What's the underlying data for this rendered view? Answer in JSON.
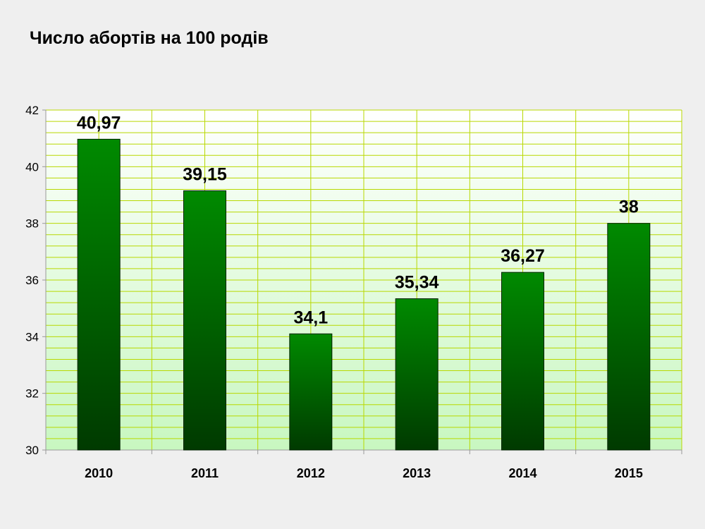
{
  "chart_data": {
    "type": "bar",
    "title": "Число абортів на 100 родів",
    "xlabel": "",
    "ylabel": "",
    "categories": [
      "2010",
      "2011",
      "2012",
      "2013",
      "2014",
      "2015"
    ],
    "values": [
      40.97,
      39.15,
      34.1,
      35.34,
      36.27,
      38
    ],
    "data_labels": [
      "40,97",
      "39,15",
      "34,1",
      "35,34",
      "36,27",
      "38"
    ],
    "ylim": [
      30,
      42
    ],
    "yticks": [
      30,
      32,
      34,
      36,
      38,
      40,
      42
    ],
    "ytick_labels": [
      "30",
      "32",
      "34",
      "36",
      "38",
      "40",
      "42"
    ],
    "grid": true,
    "legend": "none",
    "colors": {
      "bar_top": "#008a00",
      "bar_bottom": "#003a00",
      "plot_bg_top": "#ffffff",
      "plot_bg_bottom": "#c8f7c0",
      "grid": "#b8d800",
      "page_bg": "#efefef"
    }
  }
}
